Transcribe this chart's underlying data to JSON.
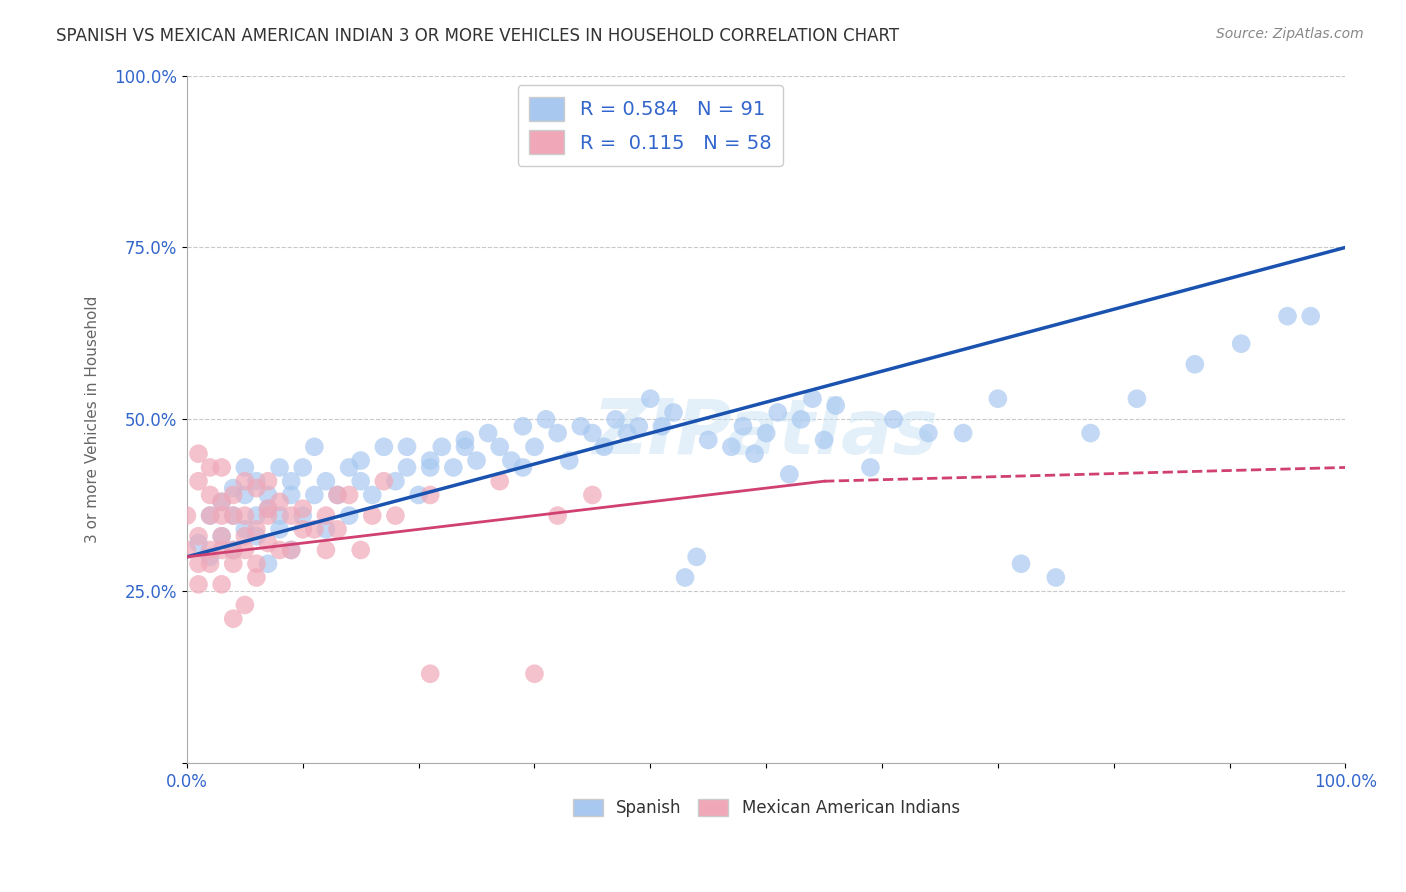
{
  "title": "SPANISH VS MEXICAN AMERICAN INDIAN 3 OR MORE VEHICLES IN HOUSEHOLD CORRELATION CHART",
  "source": "Source: ZipAtlas.com",
  "ylabel": "3 or more Vehicles in Household",
  "xlim": [
    0.0,
    1.0
  ],
  "ylim": [
    0.0,
    1.0
  ],
  "xticks": [
    0.0,
    0.1,
    0.2,
    0.3,
    0.4,
    0.5,
    0.6,
    0.7,
    0.8,
    0.9,
    1.0
  ],
  "yticks": [
    0.0,
    0.25,
    0.5,
    0.75,
    1.0
  ],
  "xticklabels": [
    "0.0%",
    "",
    "",
    "",
    "",
    "",
    "",
    "",
    "",
    "",
    "100.0%"
  ],
  "yticklabels": [
    "",
    "25.0%",
    "50.0%",
    "75.0%",
    "100.0%"
  ],
  "legend_R1": "R = 0.584",
  "legend_N1": "N = 91",
  "legend_R2": "R =  0.115",
  "legend_N2": "N = 58",
  "blue_color": "#a8c8f0",
  "pink_color": "#f0a8b8",
  "blue_line_color": "#1a52b0",
  "pink_line_color": "#d04070",
  "watermark": "ZIPatlas",
  "blue_scatter": [
    [
      0.01,
      0.32
    ],
    [
      0.02,
      0.36
    ],
    [
      0.02,
      0.3
    ],
    [
      0.03,
      0.38
    ],
    [
      0.03,
      0.33
    ],
    [
      0.04,
      0.31
    ],
    [
      0.04,
      0.36
    ],
    [
      0.04,
      0.4
    ],
    [
      0.05,
      0.34
    ],
    [
      0.05,
      0.39
    ],
    [
      0.05,
      0.43
    ],
    [
      0.06,
      0.36
    ],
    [
      0.06,
      0.33
    ],
    [
      0.06,
      0.41
    ],
    [
      0.07,
      0.29
    ],
    [
      0.07,
      0.37
    ],
    [
      0.07,
      0.39
    ],
    [
      0.08,
      0.34
    ],
    [
      0.08,
      0.43
    ],
    [
      0.08,
      0.36
    ],
    [
      0.09,
      0.31
    ],
    [
      0.09,
      0.39
    ],
    [
      0.09,
      0.41
    ],
    [
      0.1,
      0.36
    ],
    [
      0.1,
      0.43
    ],
    [
      0.11,
      0.39
    ],
    [
      0.11,
      0.46
    ],
    [
      0.12,
      0.34
    ],
    [
      0.12,
      0.41
    ],
    [
      0.13,
      0.39
    ],
    [
      0.14,
      0.36
    ],
    [
      0.14,
      0.43
    ],
    [
      0.15,
      0.41
    ],
    [
      0.15,
      0.44
    ],
    [
      0.16,
      0.39
    ],
    [
      0.17,
      0.46
    ],
    [
      0.18,
      0.41
    ],
    [
      0.19,
      0.46
    ],
    [
      0.19,
      0.43
    ],
    [
      0.2,
      0.39
    ],
    [
      0.21,
      0.43
    ],
    [
      0.21,
      0.44
    ],
    [
      0.22,
      0.46
    ],
    [
      0.23,
      0.43
    ],
    [
      0.24,
      0.47
    ],
    [
      0.24,
      0.46
    ],
    [
      0.25,
      0.44
    ],
    [
      0.26,
      0.48
    ],
    [
      0.27,
      0.46
    ],
    [
      0.28,
      0.44
    ],
    [
      0.29,
      0.49
    ],
    [
      0.29,
      0.43
    ],
    [
      0.3,
      0.46
    ],
    [
      0.31,
      0.5
    ],
    [
      0.32,
      0.48
    ],
    [
      0.33,
      0.44
    ],
    [
      0.34,
      0.49
    ],
    [
      0.35,
      0.48
    ],
    [
      0.36,
      0.46
    ],
    [
      0.37,
      0.5
    ],
    [
      0.38,
      0.48
    ],
    [
      0.39,
      0.49
    ],
    [
      0.4,
      0.53
    ],
    [
      0.41,
      0.49
    ],
    [
      0.42,
      0.51
    ],
    [
      0.43,
      0.27
    ],
    [
      0.44,
      0.3
    ],
    [
      0.45,
      0.47
    ],
    [
      0.47,
      0.46
    ],
    [
      0.48,
      0.49
    ],
    [
      0.49,
      0.45
    ],
    [
      0.5,
      0.48
    ],
    [
      0.51,
      0.51
    ],
    [
      0.52,
      0.42
    ],
    [
      0.53,
      0.5
    ],
    [
      0.54,
      0.53
    ],
    [
      0.55,
      0.47
    ],
    [
      0.56,
      0.52
    ],
    [
      0.59,
      0.43
    ],
    [
      0.61,
      0.5
    ],
    [
      0.64,
      0.48
    ],
    [
      0.67,
      0.48
    ],
    [
      0.7,
      0.53
    ],
    [
      0.72,
      0.29
    ],
    [
      0.75,
      0.27
    ],
    [
      0.78,
      0.48
    ],
    [
      0.82,
      0.53
    ],
    [
      0.87,
      0.58
    ],
    [
      0.91,
      0.61
    ],
    [
      0.95,
      0.65
    ],
    [
      0.97,
      0.65
    ]
  ],
  "pink_scatter": [
    [
      0.0,
      0.31
    ],
    [
      0.0,
      0.36
    ],
    [
      0.01,
      0.29
    ],
    [
      0.01,
      0.33
    ],
    [
      0.01,
      0.41
    ],
    [
      0.01,
      0.26
    ],
    [
      0.01,
      0.45
    ],
    [
      0.02,
      0.31
    ],
    [
      0.02,
      0.36
    ],
    [
      0.02,
      0.43
    ],
    [
      0.02,
      0.39
    ],
    [
      0.02,
      0.29
    ],
    [
      0.03,
      0.33
    ],
    [
      0.03,
      0.36
    ],
    [
      0.03,
      0.26
    ],
    [
      0.03,
      0.31
    ],
    [
      0.03,
      0.43
    ],
    [
      0.03,
      0.38
    ],
    [
      0.04,
      0.29
    ],
    [
      0.04,
      0.36
    ],
    [
      0.04,
      0.39
    ],
    [
      0.04,
      0.21
    ],
    [
      0.04,
      0.31
    ],
    [
      0.05,
      0.23
    ],
    [
      0.05,
      0.36
    ],
    [
      0.05,
      0.33
    ],
    [
      0.05,
      0.41
    ],
    [
      0.05,
      0.31
    ],
    [
      0.06,
      0.29
    ],
    [
      0.06,
      0.34
    ],
    [
      0.06,
      0.4
    ],
    [
      0.06,
      0.27
    ],
    [
      0.07,
      0.32
    ],
    [
      0.07,
      0.37
    ],
    [
      0.07,
      0.41
    ],
    [
      0.07,
      0.36
    ],
    [
      0.08,
      0.31
    ],
    [
      0.08,
      0.38
    ],
    [
      0.09,
      0.36
    ],
    [
      0.09,
      0.31
    ],
    [
      0.1,
      0.34
    ],
    [
      0.1,
      0.37
    ],
    [
      0.11,
      0.34
    ],
    [
      0.12,
      0.31
    ],
    [
      0.12,
      0.36
    ],
    [
      0.13,
      0.39
    ],
    [
      0.13,
      0.34
    ],
    [
      0.14,
      0.39
    ],
    [
      0.15,
      0.31
    ],
    [
      0.16,
      0.36
    ],
    [
      0.17,
      0.41
    ],
    [
      0.18,
      0.36
    ],
    [
      0.21,
      0.39
    ],
    [
      0.21,
      0.13
    ],
    [
      0.27,
      0.41
    ],
    [
      0.3,
      0.13
    ],
    [
      0.32,
      0.36
    ],
    [
      0.35,
      0.39
    ]
  ]
}
